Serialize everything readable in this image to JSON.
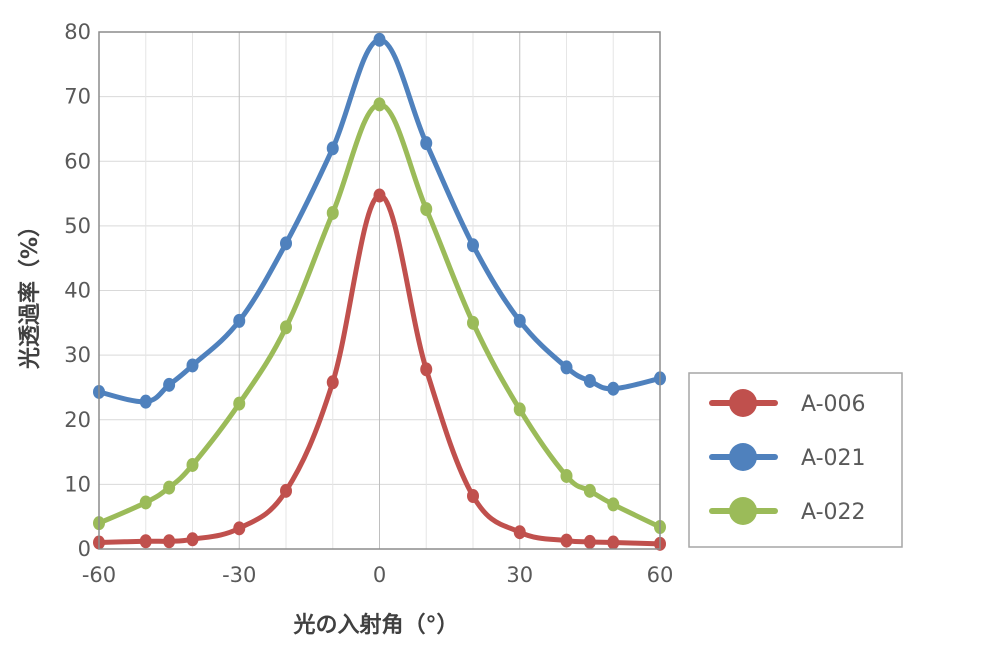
{
  "chart_data": {
    "type": "line",
    "xlabel": "光の入射角（°）",
    "ylabel": "光透過率（%）",
    "xlim": [
      -60,
      60
    ],
    "ylim": [
      0,
      80
    ],
    "x_ticks": [
      -60,
      -30,
      0,
      30,
      60
    ],
    "x_minor_gridlines": [
      -50,
      -40,
      -20,
      -10,
      10,
      20,
      40,
      50
    ],
    "y_ticks": [
      0,
      10,
      20,
      30,
      40,
      50,
      60,
      70,
      80
    ],
    "grid": true,
    "legend_position": "right",
    "series": [
      {
        "name": "A-006",
        "color": "#c0504d",
        "x": [
          -60,
          -50,
          -45,
          -40,
          -30,
          -20,
          -10,
          0,
          10,
          20,
          30,
          40,
          45,
          50,
          60
        ],
        "y": [
          1.0,
          1.2,
          1.2,
          1.5,
          3.2,
          9.0,
          25.8,
          54.7,
          27.8,
          8.2,
          2.6,
          1.3,
          1.1,
          1.0,
          0.8
        ]
      },
      {
        "name": "A-021",
        "color": "#4f81bd",
        "x": [
          -60,
          -50,
          -45,
          -40,
          -30,
          -20,
          -10,
          0,
          10,
          20,
          30,
          40,
          45,
          50,
          60
        ],
        "y": [
          24.3,
          22.8,
          25.4,
          28.4,
          35.3,
          47.3,
          62.0,
          78.8,
          62.8,
          47.0,
          35.3,
          28.1,
          26.0,
          24.8,
          26.4
        ]
      },
      {
        "name": "A-022",
        "color": "#9bbb59",
        "x": [
          -60,
          -50,
          -45,
          -40,
          -30,
          -20,
          -10,
          0,
          10,
          20,
          30,
          40,
          45,
          50,
          60
        ],
        "y": [
          4.0,
          7.2,
          9.5,
          13.0,
          22.5,
          34.3,
          52.0,
          68.8,
          52.6,
          35.0,
          21.6,
          11.3,
          9.0,
          6.9,
          3.4
        ]
      }
    ]
  }
}
